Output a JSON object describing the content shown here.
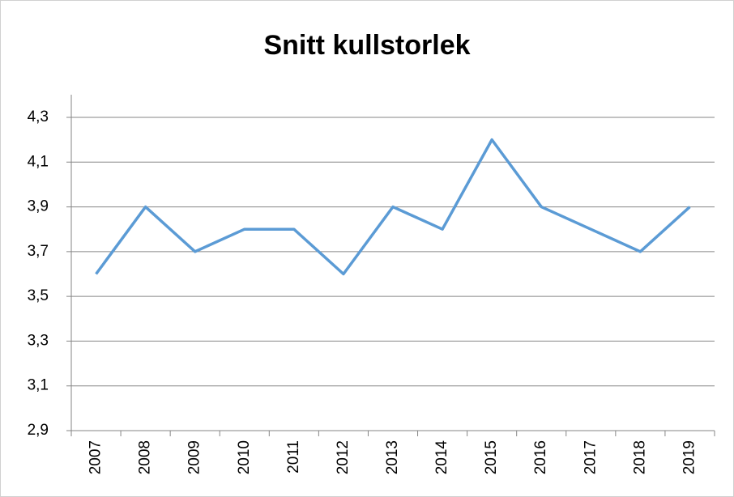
{
  "chart_data": {
    "type": "line",
    "title": "Snitt kullstorlek",
    "categories": [
      "2007",
      "2008",
      "2009",
      "2010",
      "2011",
      "2012",
      "2013",
      "2014",
      "2015",
      "2016",
      "2017",
      "2018",
      "2019"
    ],
    "values": [
      3.6,
      3.9,
      3.7,
      3.8,
      3.8,
      3.6,
      3.9,
      3.8,
      4.2,
      3.9,
      3.8,
      3.7,
      3.9
    ],
    "color": "#5b9bd5",
    "ylim": [
      2.9,
      4.3
    ],
    "yticks": [
      {
        "value": 2.9,
        "label": "2,9"
      },
      {
        "value": 3.1,
        "label": "3,1"
      },
      {
        "value": 3.3,
        "label": "3,3"
      },
      {
        "value": 3.5,
        "label": "3,5"
      },
      {
        "value": 3.7,
        "label": "3,7"
      },
      {
        "value": 3.9,
        "label": "3,9"
      },
      {
        "value": 4.1,
        "label": "4,1"
      },
      {
        "value": 4.3,
        "label": "4,3"
      }
    ],
    "grid": true
  }
}
